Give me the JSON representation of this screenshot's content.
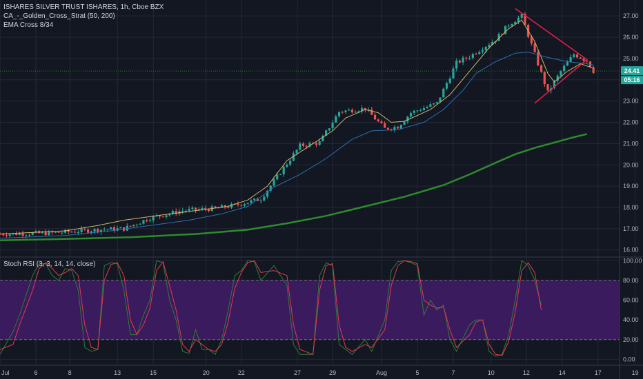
{
  "legend": {
    "title": "ISHARES SILVER TRUST ISHARES, 1h, Cboe BZX",
    "indicator1": "CA_-_Golden_Cross_Strat (50, 200)",
    "indicator2": "EMA Cross 8/34",
    "oscillator": "Stoch RSI (3, 3, 14, 14, close)"
  },
  "price_tag": {
    "price": "24.41",
    "countdown": "05:16"
  },
  "colors": {
    "background": "#131722",
    "grid": "#242938",
    "up": "#26a69a",
    "down": "#ef5350",
    "ema_fast": "#d2b46a",
    "ema_slow": "#2f6fb0",
    "ma200": "#2e8b2e",
    "triangle": "#e91e4c",
    "stoch_band": "#3a1b5e",
    "stoch_k": "#2e7d32",
    "stoch_d": "#e53950",
    "price_line": "#2e7d32"
  },
  "chart_data": {
    "type": "candlestick",
    "x_ticks": [
      "Jul",
      "6",
      "8",
      "13",
      "15",
      "20",
      "22",
      "27",
      "29",
      "Aug",
      "5",
      "7",
      "10",
      "12",
      "14",
      "17",
      "19"
    ],
    "y_ticks": [
      "16.00",
      "17.00",
      "18.00",
      "19.00",
      "20.00",
      "21.00",
      "22.00",
      "23.00",
      "24.00",
      "25.00",
      "26.00",
      "27.00"
    ],
    "ylim": [
      15.7,
      27.75
    ],
    "osc_ticks": [
      "0.00",
      "20.00",
      "40.00",
      "60.00",
      "80.00",
      "100.00"
    ],
    "osc_lim": [
      -6,
      103
    ],
    "osc_band": [
      20,
      80
    ],
    "last_price": 24.41,
    "price_path": [
      [
        0,
        16.75
      ],
      [
        8,
        16.8
      ],
      [
        15,
        16.95
      ],
      [
        19,
        17.0
      ],
      [
        23,
        17.5
      ],
      [
        28,
        17.85
      ],
      [
        33,
        17.95
      ],
      [
        36,
        18.1
      ],
      [
        40,
        18.4
      ],
      [
        43,
        19.65
      ],
      [
        46,
        20.9
      ],
      [
        49,
        21.05
      ],
      [
        52,
        22.5
      ],
      [
        56,
        22.65
      ],
      [
        59,
        21.7
      ],
      [
        61,
        21.8
      ],
      [
        63,
        22.45
      ],
      [
        67,
        22.9
      ],
      [
        70,
        24.8
      ],
      [
        72,
        25.1
      ],
      [
        76,
        25.9
      ],
      [
        78,
        26.6
      ],
      [
        80,
        27.0
      ],
      [
        82,
        25.2
      ],
      [
        84,
        23.4
      ],
      [
        86,
        24.4
      ],
      [
        88,
        25.2
      ],
      [
        90,
        24.9
      ],
      [
        91,
        24.41
      ]
    ],
    "series": [
      {
        "name": "EMA 8",
        "values": [
          [
            0,
            16.75
          ],
          [
            10,
            16.9
          ],
          [
            15,
            17.15
          ],
          [
            19,
            17.4
          ],
          [
            25,
            17.65
          ],
          [
            30,
            17.85
          ],
          [
            35,
            18.05
          ],
          [
            38,
            18.35
          ],
          [
            41,
            19.0
          ],
          [
            44,
            20.2
          ],
          [
            48,
            21.0
          ],
          [
            51,
            21.6
          ],
          [
            53,
            22.2
          ],
          [
            56,
            22.6
          ],
          [
            58,
            22.45
          ],
          [
            60,
            22.0
          ],
          [
            62,
            22.05
          ],
          [
            66,
            22.6
          ],
          [
            69,
            23.3
          ],
          [
            72,
            24.4
          ],
          [
            75,
            25.5
          ],
          [
            78,
            26.4
          ],
          [
            80,
            26.8
          ],
          [
            82,
            25.8
          ],
          [
            84,
            24.3
          ],
          [
            85,
            23.9
          ],
          [
            87,
            24.4
          ],
          [
            89,
            24.75
          ],
          [
            91,
            24.55
          ]
        ]
      },
      {
        "name": "EMA 34",
        "values": [
          [
            0,
            16.55
          ],
          [
            10,
            16.68
          ],
          [
            17,
            16.9
          ],
          [
            23,
            17.15
          ],
          [
            29,
            17.4
          ],
          [
            34,
            17.7
          ],
          [
            38,
            18.05
          ],
          [
            42,
            18.95
          ],
          [
            46,
            19.55
          ],
          [
            50,
            20.3
          ],
          [
            54,
            21.2
          ],
          [
            57,
            21.6
          ],
          [
            61,
            21.65
          ],
          [
            65,
            22.0
          ],
          [
            68,
            22.6
          ],
          [
            71,
            23.5
          ],
          [
            73,
            24.3
          ],
          [
            76,
            24.85
          ],
          [
            79,
            25.25
          ],
          [
            81,
            25.3
          ],
          [
            84,
            25.05
          ],
          [
            87,
            24.85
          ],
          [
            90,
            24.75
          ],
          [
            91,
            24.7
          ]
        ]
      },
      {
        "name": "MA 200",
        "values": [
          [
            0,
            16.45
          ],
          [
            10,
            16.52
          ],
          [
            20,
            16.6
          ],
          [
            30,
            16.75
          ],
          [
            38,
            16.95
          ],
          [
            44,
            17.25
          ],
          [
            50,
            17.6
          ],
          [
            56,
            18.05
          ],
          [
            62,
            18.5
          ],
          [
            68,
            19.05
          ],
          [
            72,
            19.55
          ],
          [
            76,
            20.1
          ],
          [
            79,
            20.5
          ],
          [
            82,
            20.8
          ],
          [
            85,
            21.05
          ],
          [
            88,
            21.3
          ],
          [
            90,
            21.45
          ]
        ]
      }
    ],
    "triangle": [
      [
        79,
        27.35
      ],
      [
        90,
        24.95
      ],
      [
        82,
        22.9
      ]
    ],
    "stoch_k_osc": [
      [
        0,
        5
      ],
      [
        2,
        28
      ],
      [
        3,
        45
      ],
      [
        5,
        85
      ],
      [
        6,
        97
      ],
      [
        7,
        97
      ],
      [
        8,
        85
      ],
      [
        9,
        80
      ],
      [
        10,
        92
      ],
      [
        11,
        90
      ],
      [
        12,
        70
      ],
      [
        13,
        12
      ],
      [
        14,
        8
      ],
      [
        15,
        10
      ],
      [
        16,
        95
      ],
      [
        17,
        98
      ],
      [
        18,
        97
      ],
      [
        19,
        70
      ],
      [
        20,
        25
      ],
      [
        21,
        25
      ],
      [
        22,
        45
      ],
      [
        23,
        60
      ],
      [
        24,
        100
      ],
      [
        25,
        98
      ],
      [
        26,
        60
      ],
      [
        27,
        40
      ],
      [
        28,
        8
      ],
      [
        29,
        6
      ],
      [
        30,
        30
      ],
      [
        31,
        10
      ],
      [
        32,
        10
      ],
      [
        33,
        5
      ],
      [
        34,
        20
      ],
      [
        35,
        50
      ],
      [
        36,
        85
      ],
      [
        37,
        90
      ],
      [
        38,
        100
      ],
      [
        39,
        99
      ],
      [
        40,
        80
      ],
      [
        42,
        95
      ],
      [
        44,
        75
      ],
      [
        45,
        15
      ],
      [
        46,
        5
      ],
      [
        48,
        5
      ],
      [
        49,
        85
      ],
      [
        50,
        98
      ],
      [
        51,
        95
      ],
      [
        52,
        15
      ],
      [
        53,
        10
      ],
      [
        54,
        5
      ],
      [
        56,
        20
      ],
      [
        57,
        8
      ],
      [
        59,
        40
      ],
      [
        60,
        90
      ],
      [
        61,
        99
      ],
      [
        62,
        100
      ],
      [
        63,
        98
      ],
      [
        64,
        95
      ],
      [
        65,
        45
      ],
      [
        66,
        60
      ],
      [
        67,
        50
      ],
      [
        68,
        55
      ],
      [
        69,
        20
      ],
      [
        70,
        8
      ],
      [
        72,
        35
      ],
      [
        73,
        40
      ],
      [
        74,
        40
      ],
      [
        75,
        8
      ],
      [
        76,
        3
      ],
      [
        77,
        5
      ],
      [
        78,
        25
      ],
      [
        79,
        60
      ],
      [
        80,
        100
      ],
      [
        81,
        95
      ],
      [
        82,
        80
      ],
      [
        83,
        55
      ]
    ],
    "stoch_d_osc": [
      [
        0,
        10
      ],
      [
        2,
        15
      ],
      [
        3,
        35
      ],
      [
        5,
        70
      ],
      [
        6,
        92
      ],
      [
        7,
        98
      ],
      [
        8,
        92
      ],
      [
        9,
        85
      ],
      [
        10,
        88
      ],
      [
        11,
        92
      ],
      [
        12,
        85
      ],
      [
        13,
        35
      ],
      [
        14,
        12
      ],
      [
        15,
        10
      ],
      [
        16,
        80
      ],
      [
        17,
        96
      ],
      [
        18,
        98
      ],
      [
        19,
        85
      ],
      [
        20,
        40
      ],
      [
        21,
        25
      ],
      [
        22,
        35
      ],
      [
        23,
        52
      ],
      [
        24,
        90
      ],
      [
        25,
        99
      ],
      [
        26,
        75
      ],
      [
        27,
        50
      ],
      [
        28,
        15
      ],
      [
        29,
        8
      ],
      [
        30,
        20
      ],
      [
        31,
        15
      ],
      [
        32,
        10
      ],
      [
        33,
        8
      ],
      [
        34,
        15
      ],
      [
        35,
        38
      ],
      [
        36,
        72
      ],
      [
        37,
        88
      ],
      [
        38,
        98
      ],
      [
        39,
        100
      ],
      [
        40,
        88
      ],
      [
        42,
        90
      ],
      [
        44,
        85
      ],
      [
        45,
        35
      ],
      [
        46,
        10
      ],
      [
        48,
        5
      ],
      [
        49,
        70
      ],
      [
        50,
        95
      ],
      [
        51,
        97
      ],
      [
        52,
        35
      ],
      [
        53,
        12
      ],
      [
        54,
        8
      ],
      [
        56,
        15
      ],
      [
        57,
        12
      ],
      [
        59,
        30
      ],
      [
        60,
        75
      ],
      [
        61,
        95
      ],
      [
        62,
        100
      ],
      [
        63,
        99
      ],
      [
        64,
        97
      ],
      [
        65,
        60
      ],
      [
        66,
        55
      ],
      [
        67,
        52
      ],
      [
        68,
        53
      ],
      [
        69,
        30
      ],
      [
        70,
        12
      ],
      [
        72,
        25
      ],
      [
        73,
        38
      ],
      [
        74,
        40
      ],
      [
        75,
        15
      ],
      [
        76,
        5
      ],
      [
        77,
        4
      ],
      [
        78,
        18
      ],
      [
        79,
        48
      ],
      [
        80,
        90
      ],
      [
        81,
        98
      ],
      [
        82,
        88
      ],
      [
        83,
        50
      ]
    ]
  }
}
